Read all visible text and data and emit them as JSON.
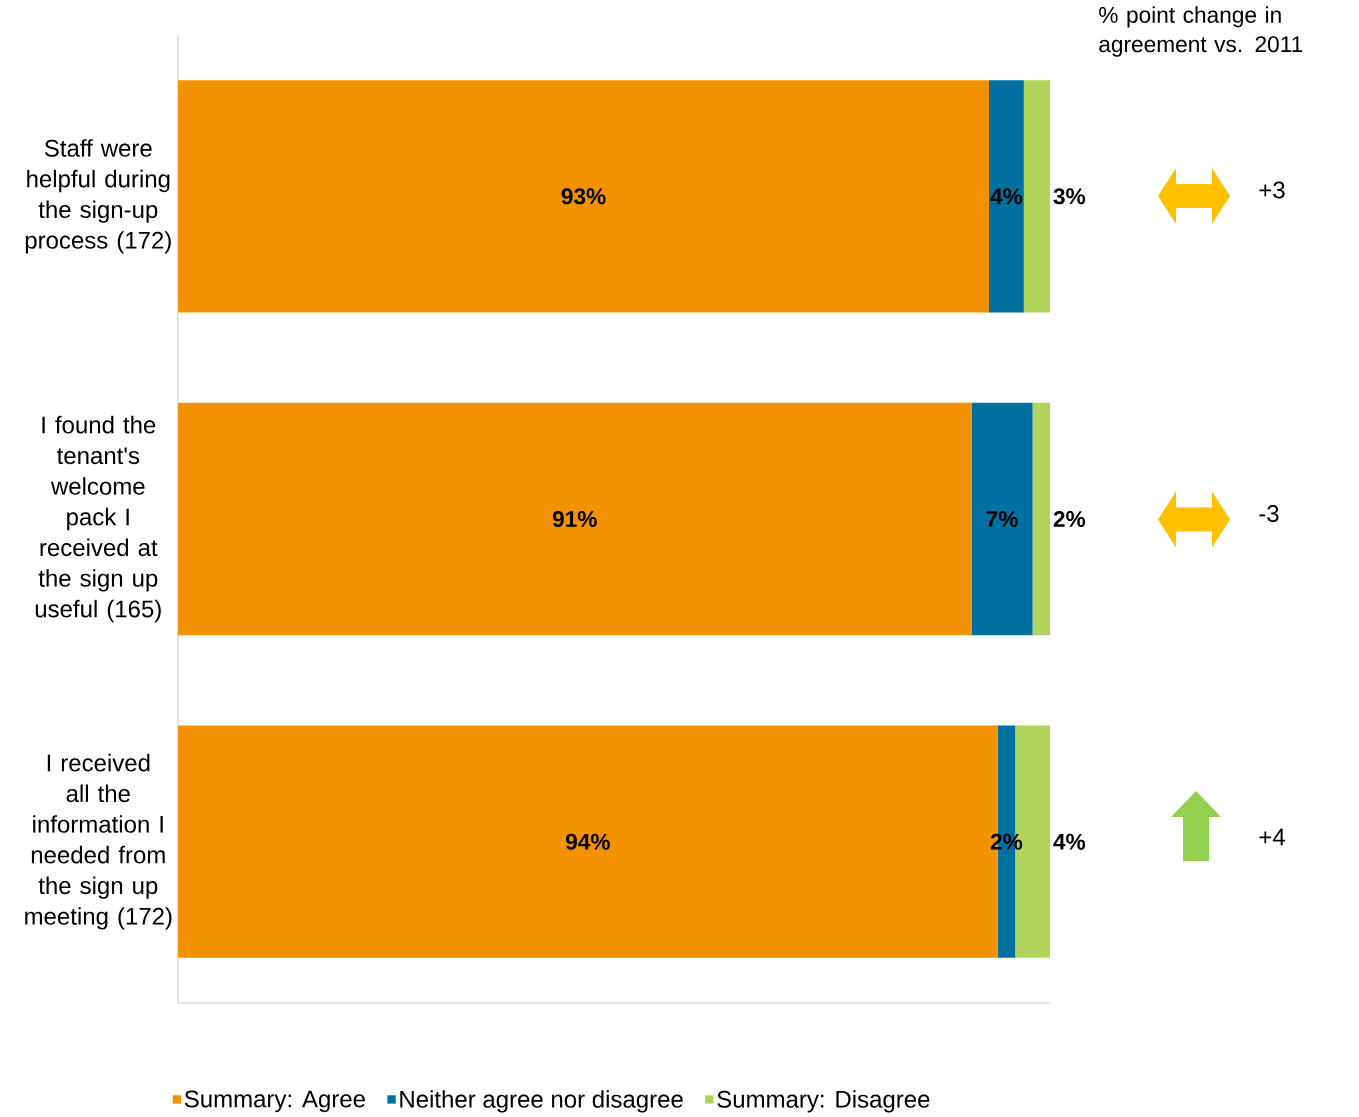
{
  "chart_data": {
    "type": "bar",
    "orientation": "horizontal",
    "stacked": true,
    "categories": [
      "Staff were helpful during the sign-up process (172)",
      "I found the tenant's welcome pack I received at the sign up useful (165)",
      "I received all the information I needed from the sign up meeting (172)"
    ],
    "series": [
      {
        "name": "Summary: Agree",
        "color": "#f39200",
        "values": [
          93,
          91,
          94
        ],
        "value_labels": [
          "93%",
          "91%",
          "94%"
        ]
      },
      {
        "name": "Neither agree nor disagree",
        "color": "#0070a0",
        "values": [
          4,
          7,
          2
        ],
        "value_labels": [
          "4%",
          "7%",
          "2%"
        ]
      },
      {
        "name": "Summary: Disagree",
        "color": "#b0d35a",
        "values": [
          3,
          2,
          4
        ],
        "value_labels": [
          "3%",
          "2%",
          "4%"
        ]
      }
    ],
    "xlim": [
      0,
      100
    ],
    "tick_labels": "y",
    "legend": "bottom",
    "annotations": [
      "% point change in agreement vs. 2011",
      "+3",
      "-3",
      "+4"
    ]
  }
}
